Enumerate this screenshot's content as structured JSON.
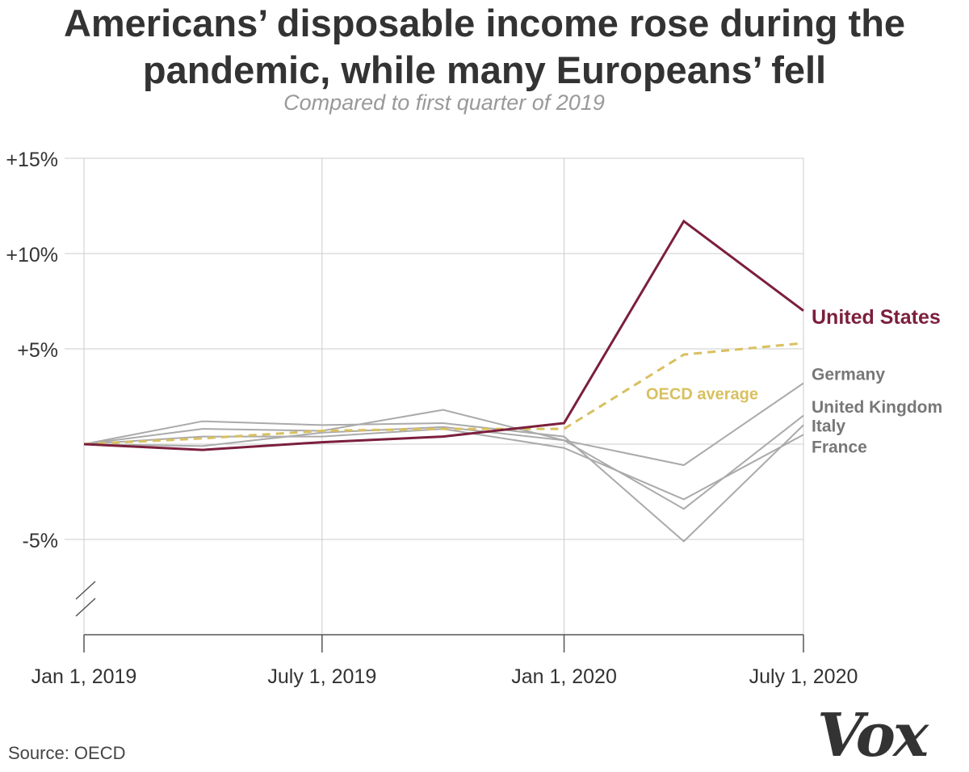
{
  "header": {
    "title_line1": "Americans’ disposable income rose during the",
    "title_line2": "pandemic, while many Europeans’ fell",
    "subtitle": "Compared to first quarter of 2019"
  },
  "footer": {
    "source": "Source: OECD",
    "logo": "Vox"
  },
  "colors": {
    "us": "#7b1f3c",
    "oecd": "#d8c060",
    "europe": "#aaaaaa",
    "europe_label": "#777777",
    "grid": "#cccccc",
    "axis": "#555555"
  },
  "chart_data": {
    "type": "line",
    "title": "Americans’ disposable income rose during the pandemic, while many Europeans’ fell",
    "subtitle": "Compared to first quarter of 2019",
    "x": [
      "2019-01-01",
      "2019-04-01",
      "2019-07-01",
      "2019-10-01",
      "2020-01-01",
      "2020-04-01",
      "2020-07-01"
    ],
    "x_ticks": [
      {
        "value": "2019-01-01",
        "label": "Jan 1, 2019"
      },
      {
        "value": "2019-07-01",
        "label": "July 1, 2019"
      },
      {
        "value": "2020-01-01",
        "label": "Jan 1, 2020"
      },
      {
        "value": "2020-07-01",
        "label": "July 1, 2020"
      }
    ],
    "y_ticks": [
      {
        "value": 15,
        "label": "+15%"
      },
      {
        "value": 10,
        "label": "+10%"
      },
      {
        "value": 5,
        "label": "+5%"
      },
      {
        "value": -5,
        "label": "-5%"
      }
    ],
    "ylim": [
      -10,
      15
    ],
    "y_axis_break": true,
    "grid": true,
    "series": [
      {
        "name": "Germany",
        "role": "europe",
        "values": [
          0,
          0.8,
          0.7,
          1.8,
          0.2,
          -1.1,
          3.2
        ]
      },
      {
        "name": "United Kingdom",
        "role": "europe",
        "values": [
          0,
          -0.1,
          0.6,
          0.9,
          0.2,
          -3.4,
          1.5
        ]
      },
      {
        "name": "Italy",
        "role": "europe",
        "values": [
          0,
          1.2,
          1.0,
          1.1,
          0.4,
          -5.1,
          1.0
        ]
      },
      {
        "name": "France",
        "role": "europe",
        "values": [
          0,
          0.4,
          0.4,
          0.8,
          -0.2,
          -2.9,
          0.5
        ]
      },
      {
        "name": "OECD average",
        "role": "oecd",
        "values": [
          0,
          0.3,
          0.7,
          0.8,
          0.8,
          4.7,
          5.3
        ]
      },
      {
        "name": "United States",
        "role": "us",
        "values": [
          0,
          -0.3,
          0.1,
          0.4,
          1.1,
          11.7,
          7.0
        ]
      }
    ],
    "labels": [
      {
        "series": "United States",
        "text": "United States",
        "y": 6.7
      },
      {
        "series": "Germany",
        "text": "Germany",
        "y": 3.7
      },
      {
        "series": "United Kingdom",
        "text": "United Kingdom",
        "y": 2.0
      },
      {
        "series": "Italy",
        "text": "Italy",
        "y": 1.0
      },
      {
        "series": "France",
        "text": "France",
        "y": -0.1
      },
      {
        "series": "OECD average",
        "text": "OECD average",
        "y": 2.7
      }
    ]
  }
}
